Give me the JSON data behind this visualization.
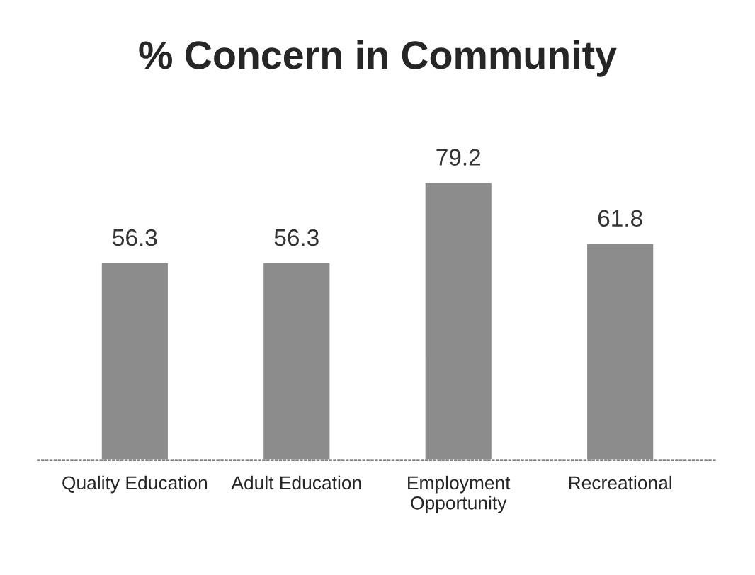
{
  "chart_data": {
    "type": "bar",
    "title": "% Concern in Community",
    "categories": [
      "Quality Education",
      "Adult Education",
      "Employment\nOpportunity",
      "Recreational"
    ],
    "values": [
      56.3,
      56.3,
      79.2,
      61.8
    ],
    "color": "#8c8c8c",
    "data_labels": true,
    "grid": false,
    "legend": false
  }
}
